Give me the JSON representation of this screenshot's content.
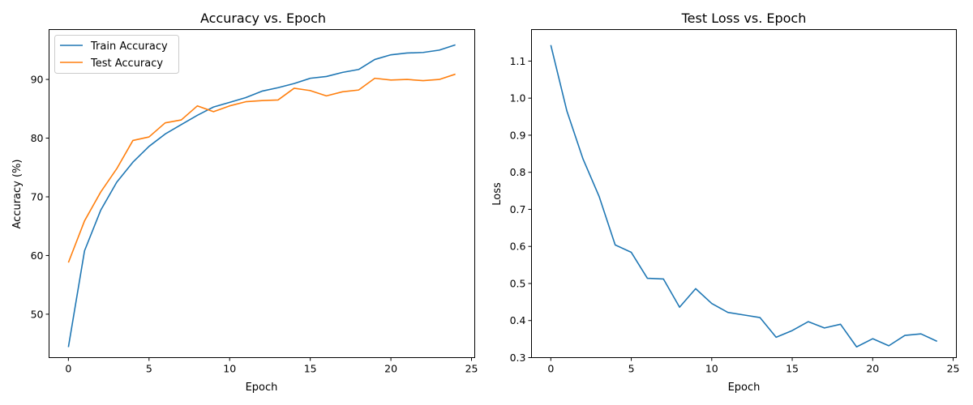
{
  "chart_data": [
    {
      "type": "line",
      "title": "Accuracy vs. Epoch",
      "xlabel": "Epoch",
      "ylabel": "Accuracy (%)",
      "xlim": [
        -1.2,
        25.2
      ],
      "ylim": [
        42.6,
        98.5
      ],
      "xticks": [
        0,
        5,
        10,
        15,
        20,
        25
      ],
      "yticks": [
        50,
        60,
        70,
        80,
        90
      ],
      "grid": false,
      "legend": "top-left",
      "x": [
        0,
        1,
        2,
        3,
        4,
        5,
        6,
        7,
        8,
        9,
        10,
        11,
        12,
        13,
        14,
        15,
        16,
        17,
        18,
        19,
        20,
        21,
        22,
        23,
        24
      ],
      "series": [
        {
          "name": "Train Accuracy",
          "color": "#1f77b4",
          "values": [
            44.4,
            60.8,
            67.7,
            72.5,
            75.9,
            78.6,
            80.7,
            82.3,
            83.9,
            85.3,
            86.1,
            86.9,
            88.0,
            88.6,
            89.3,
            90.2,
            90.5,
            91.2,
            91.7,
            93.4,
            94.2,
            94.5,
            94.6,
            95.0,
            95.9
          ]
        },
        {
          "name": "Test Accuracy",
          "color": "#ff7f0e",
          "values": [
            58.8,
            65.9,
            70.8,
            74.8,
            79.6,
            80.2,
            82.6,
            83.1,
            85.5,
            84.5,
            85.5,
            86.2,
            86.4,
            86.5,
            88.5,
            88.1,
            87.2,
            87.9,
            88.2,
            90.2,
            89.9,
            90.0,
            89.8,
            90.0,
            90.9
          ]
        }
      ]
    },
    {
      "type": "line",
      "title": "Test Loss vs. Epoch",
      "xlabel": "Epoch",
      "ylabel": "Loss",
      "xlim": [
        -1.2,
        25.2
      ],
      "ylim": [
        0.3,
        1.185
      ],
      "xticks": [
        0,
        5,
        10,
        15,
        20,
        25
      ],
      "yticks": [
        0.3,
        0.4,
        0.5,
        0.6,
        0.7,
        0.8,
        0.9,
        1.0,
        1.1
      ],
      "ytick_labels": [
        "0.3",
        "0.4",
        "0.5",
        "0.6",
        "0.7",
        "0.8",
        "0.9",
        "1.0",
        "1.1"
      ],
      "grid": false,
      "x": [
        0,
        1,
        2,
        3,
        4,
        5,
        6,
        7,
        8,
        9,
        10,
        11,
        12,
        13,
        14,
        15,
        16,
        17,
        18,
        19,
        20,
        21,
        22,
        23,
        24
      ],
      "series": [
        {
          "color": "#1f77b4",
          "values": [
            1.143,
            0.965,
            0.836,
            0.735,
            0.604,
            0.584,
            0.514,
            0.512,
            0.436,
            0.486,
            0.446,
            0.422,
            0.415,
            0.408,
            0.355,
            0.373,
            0.397,
            0.38,
            0.39,
            0.329,
            0.351,
            0.332,
            0.36,
            0.364,
            0.344
          ]
        }
      ]
    }
  ]
}
